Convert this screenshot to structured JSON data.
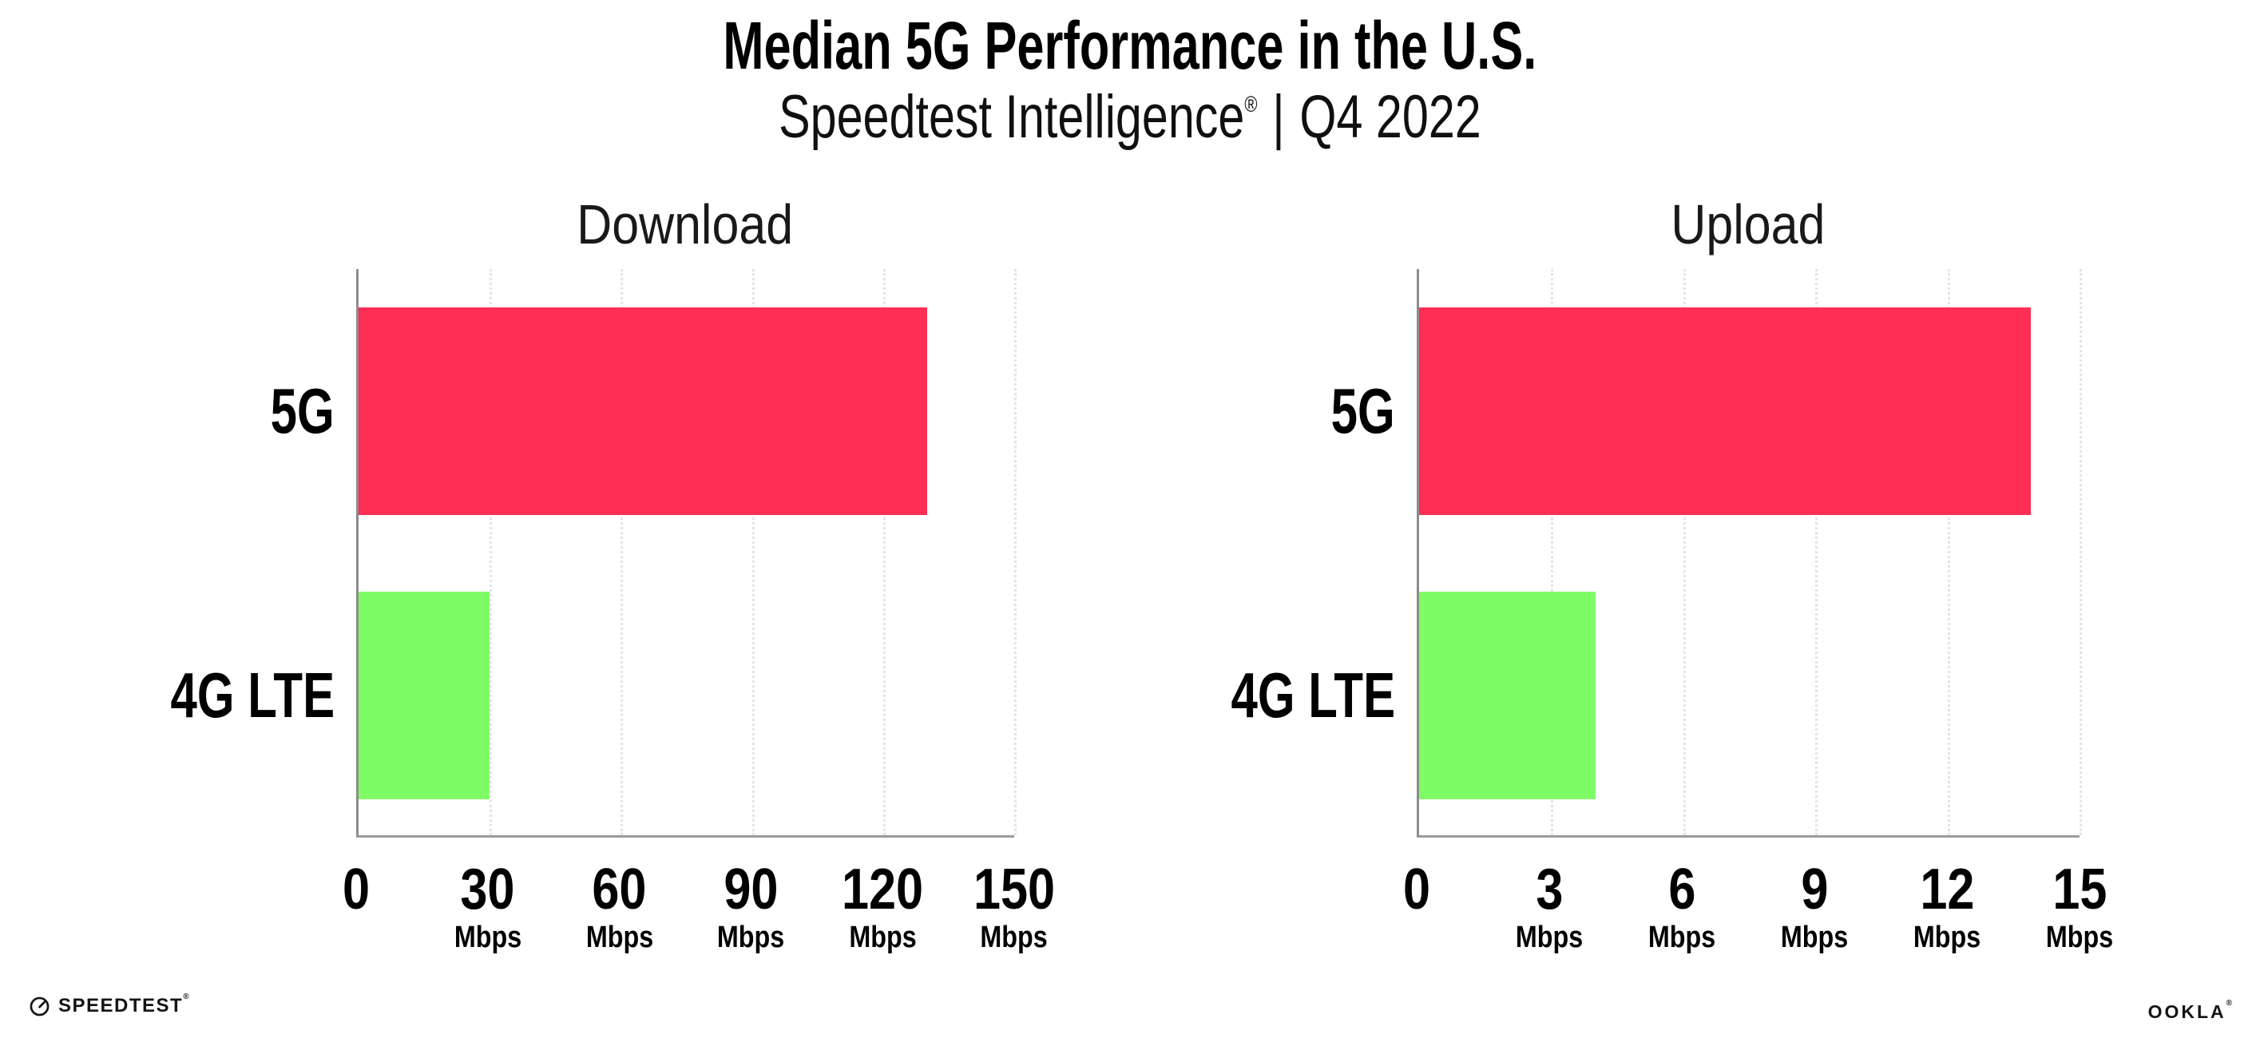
{
  "header": {
    "title": "Median 5G Performance in the U.S.",
    "brand": "Speedtest Intelligence",
    "registered_mark": "®",
    "separator": "|",
    "period": "Q4 2022"
  },
  "chart_data": [
    {
      "type": "bar",
      "orientation": "horizontal",
      "title": "Download",
      "categories": [
        "5G",
        "4G LTE"
      ],
      "values": [
        130,
        30
      ],
      "unit": "Mbps",
      "xlabel": "",
      "ylabel": "",
      "xlim": [
        0,
        150
      ],
      "ticks": [
        0,
        30,
        60,
        90,
        120,
        150
      ],
      "bar_colors": [
        "#ff2e55",
        "#7ffb65"
      ],
      "grid": "dotted-vertical-gridlines",
      "legend": "none"
    },
    {
      "type": "bar",
      "orientation": "horizontal",
      "title": "Upload",
      "categories": [
        "5G",
        "4G LTE"
      ],
      "values": [
        13.9,
        4
      ],
      "unit": "Mbps",
      "xlabel": "",
      "ylabel": "",
      "xlim": [
        0,
        15
      ],
      "ticks": [
        0,
        3,
        6,
        9,
        12,
        15
      ],
      "bar_colors": [
        "#ff2e55",
        "#7ffb65"
      ],
      "grid": "dotted-vertical-gridlines",
      "legend": "none"
    }
  ],
  "footer": {
    "speedtest_label": "SPEEDTEST",
    "speedtest_mark": "®",
    "ookla_label": "OOKLA",
    "ookla_mark": "®"
  },
  "colors": {
    "bar_5g": "#ff2e55",
    "bar_4g_lte": "#7ffb65",
    "axis_line": "#9b9b9b",
    "spine_line": "#8c8c8c",
    "gridline": "#e2e2ee",
    "text": "#000000"
  }
}
